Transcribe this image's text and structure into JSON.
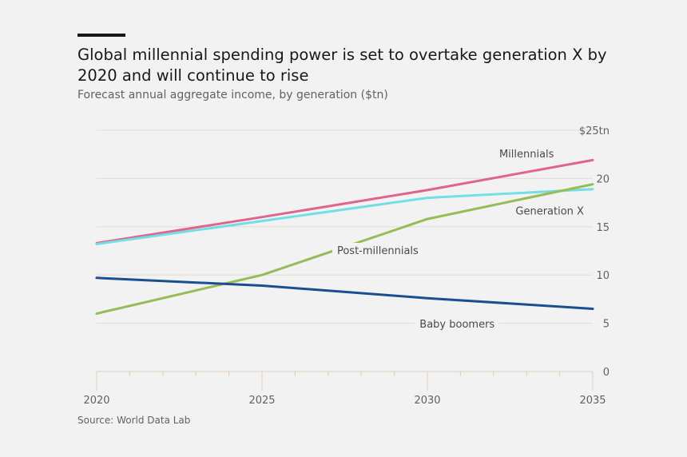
{
  "chart_data": {
    "type": "line",
    "title": "Global millennial spending power is set to overtake generation X by 2020 and will continue to rise",
    "subtitle": "Forecast annual aggregate income, by generation ($tn)",
    "source": "Source: World Data Lab",
    "x": [
      2020,
      2025,
      2030,
      2035
    ],
    "xlim": [
      2020,
      2035
    ],
    "ylim": [
      0,
      25
    ],
    "x_ticks": [
      "2020",
      "2025",
      "2030",
      "2035"
    ],
    "y_ticks": [
      {
        "value": 0,
        "label": "0"
      },
      {
        "value": 5,
        "label": "5"
      },
      {
        "value": 10,
        "label": "10"
      },
      {
        "value": 15,
        "label": "15"
      },
      {
        "value": 20,
        "label": "20"
      },
      {
        "value": 25,
        "label": "$25tn"
      }
    ],
    "grid": true,
    "series": [
      {
        "name": "Millennials",
        "color": "#e0648b",
        "x": [
          2020,
          2025,
          2030,
          2035
        ],
        "values": [
          13.3,
          16.0,
          18.8,
          21.9
        ],
        "label": {
          "x": 2033,
          "y": 22.5
        }
      },
      {
        "name": "Generation X",
        "color": "#72dfe6",
        "x": [
          2020,
          2025,
          2030,
          2035
        ],
        "values": [
          13.2,
          15.6,
          18.0,
          18.9
        ],
        "label": {
          "x": 2033.7,
          "y": 16.6
        }
      },
      {
        "name": "Post-millennials",
        "color": "#96bd55",
        "x": [
          2020,
          2025,
          2030,
          2035
        ],
        "values": [
          6.0,
          10.0,
          15.8,
          19.4
        ],
        "label": {
          "x": 2028.5,
          "y": 12.5
        }
      },
      {
        "name": "Baby boomers",
        "color": "#1a4f8f",
        "x": [
          2020,
          2025,
          2030,
          2035
        ],
        "values": [
          9.7,
          8.9,
          7.6,
          6.5
        ],
        "label": {
          "x": 2030.9,
          "y": 4.9
        }
      }
    ]
  }
}
